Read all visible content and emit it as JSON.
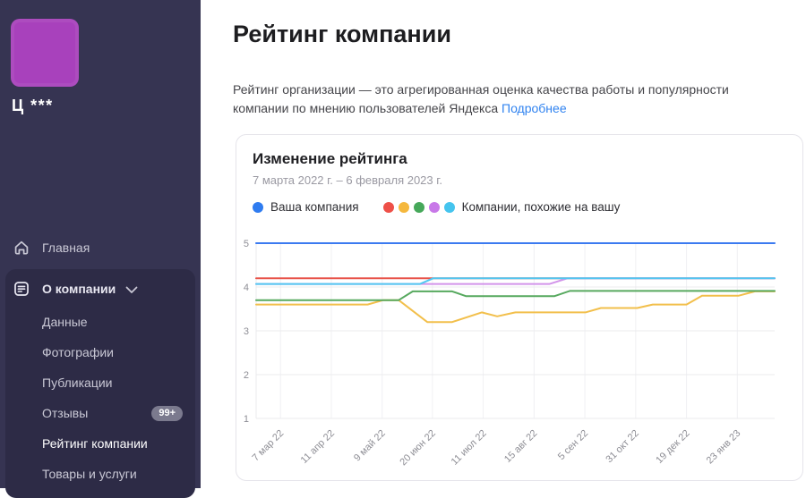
{
  "sidebar": {
    "company_name": "Ц ***",
    "home_label": "Главная",
    "section": {
      "label": "О компании",
      "children": [
        {
          "label": "Данные"
        },
        {
          "label": "Фотографии"
        },
        {
          "label": "Публикации"
        },
        {
          "label": "Отзывы",
          "badge": "99+"
        },
        {
          "label": "Рейтинг компании",
          "active": true
        },
        {
          "label": "Товары и услуги"
        }
      ]
    },
    "colors": {
      "background": "#363452",
      "section_background": "#2d2b46",
      "logo": "#a841bc",
      "badge": "#7b7a8e"
    }
  },
  "main": {
    "title": "Рейтинг компании",
    "description": "Рейтинг организации — это агрегированная оценка качества работы и популярности компании по мнению пользователей Яндекса",
    "more_link": "Подробнее",
    "link_color": "#3083f0"
  },
  "chart_card": {
    "title": "Изменение рейтинга",
    "date_range": "7 марта 2022 г. – 6 февраля 2023 г.",
    "legend": {
      "your_company": {
        "label": "Ваша компания",
        "color": "#2f7cf0"
      },
      "similar": {
        "label": "Компании, похожие на вашу",
        "colors": [
          "#ee5048",
          "#f5b83d",
          "#46a85a",
          "#c878e8",
          "#45c4ee"
        ]
      }
    }
  },
  "chart_data": {
    "type": "line",
    "title": "Изменение рейтинга",
    "xlabel": "",
    "ylabel": "",
    "ylim": [
      1,
      5
    ],
    "y_ticks": [
      1,
      2,
      3,
      4,
      5
    ],
    "grid": true,
    "x_tick_positions": [
      0.047,
      0.145,
      0.243,
      0.34,
      0.438,
      0.536,
      0.634,
      0.732,
      0.83,
      0.928
    ],
    "x_tick_labels": [
      "7 мар 22",
      "11 апр 22",
      "9 май 22",
      "20 июн 22",
      "11 июл 22",
      "15 авг 22",
      "5 сен 22",
      "31 окт 22",
      "19 дек 22",
      "23 янв 23"
    ],
    "legend_position": "top",
    "series": [
      {
        "name": "similar-company-1",
        "color": "#e8544a",
        "points": [
          [
            0,
            4.2
          ],
          [
            1,
            4.2
          ]
        ]
      },
      {
        "name": "similar-company-2",
        "color": "#f2bf4b",
        "points": [
          [
            0,
            3.6
          ],
          [
            0.215,
            3.6
          ],
          [
            0.245,
            3.7
          ],
          [
            0.275,
            3.7
          ],
          [
            0.33,
            3.2
          ],
          [
            0.378,
            3.2
          ],
          [
            0.435,
            3.42
          ],
          [
            0.465,
            3.33
          ],
          [
            0.5,
            3.42
          ],
          [
            0.635,
            3.42
          ],
          [
            0.665,
            3.52
          ],
          [
            0.735,
            3.52
          ],
          [
            0.765,
            3.6
          ],
          [
            0.83,
            3.6
          ],
          [
            0.86,
            3.8
          ],
          [
            0.93,
            3.8
          ],
          [
            0.962,
            3.9
          ],
          [
            1,
            3.9
          ]
        ]
      },
      {
        "name": "similar-company-3",
        "color": "#57a95f",
        "points": [
          [
            0,
            3.7
          ],
          [
            0.275,
            3.7
          ],
          [
            0.302,
            3.9
          ],
          [
            0.378,
            3.9
          ],
          [
            0.405,
            3.79
          ],
          [
            0.575,
            3.79
          ],
          [
            0.605,
            3.91
          ],
          [
            1,
            3.91
          ]
        ]
      },
      {
        "name": "similar-company-4",
        "color": "#d294ea",
        "points": [
          [
            0,
            4.07
          ],
          [
            0.566,
            4.07
          ],
          [
            0.601,
            4.2
          ],
          [
            1,
            4.2
          ]
        ]
      },
      {
        "name": "similar-company-5",
        "color": "#52c8f2",
        "points": [
          [
            0,
            4.07
          ],
          [
            0.316,
            4.07
          ],
          [
            0.342,
            4.2
          ],
          [
            1,
            4.2
          ]
        ]
      },
      {
        "name": "your-company",
        "color": "#3b7af0",
        "points": [
          [
            0,
            5
          ],
          [
            1,
            5
          ]
        ]
      }
    ]
  }
}
